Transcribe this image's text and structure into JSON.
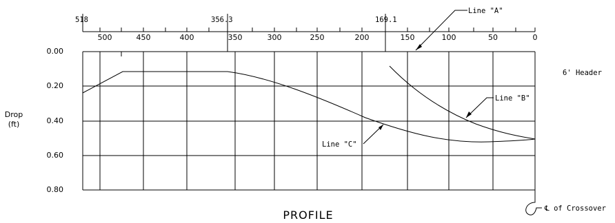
{
  "top_ticks": [
    "518",
    "356.3",
    "169.1"
  ],
  "x_ticks": [
    "500",
    "450",
    "400",
    "350",
    "300",
    "250",
    "200",
    "150",
    "100",
    "50",
    "0"
  ],
  "y_ticks": [
    "0.00",
    "0.20",
    "0.40",
    "0.60",
    "0.80"
  ],
  "y_label": {
    "line1": "Drop",
    "line2": "(ft)"
  },
  "labels": {
    "line_a": "Line \"A\"",
    "line_b": "Line \"B\"",
    "line_c": "Line \"C\"",
    "header": "6' Header",
    "crossover": "℄ of Crossover",
    "title": "PROFILE"
  }
}
